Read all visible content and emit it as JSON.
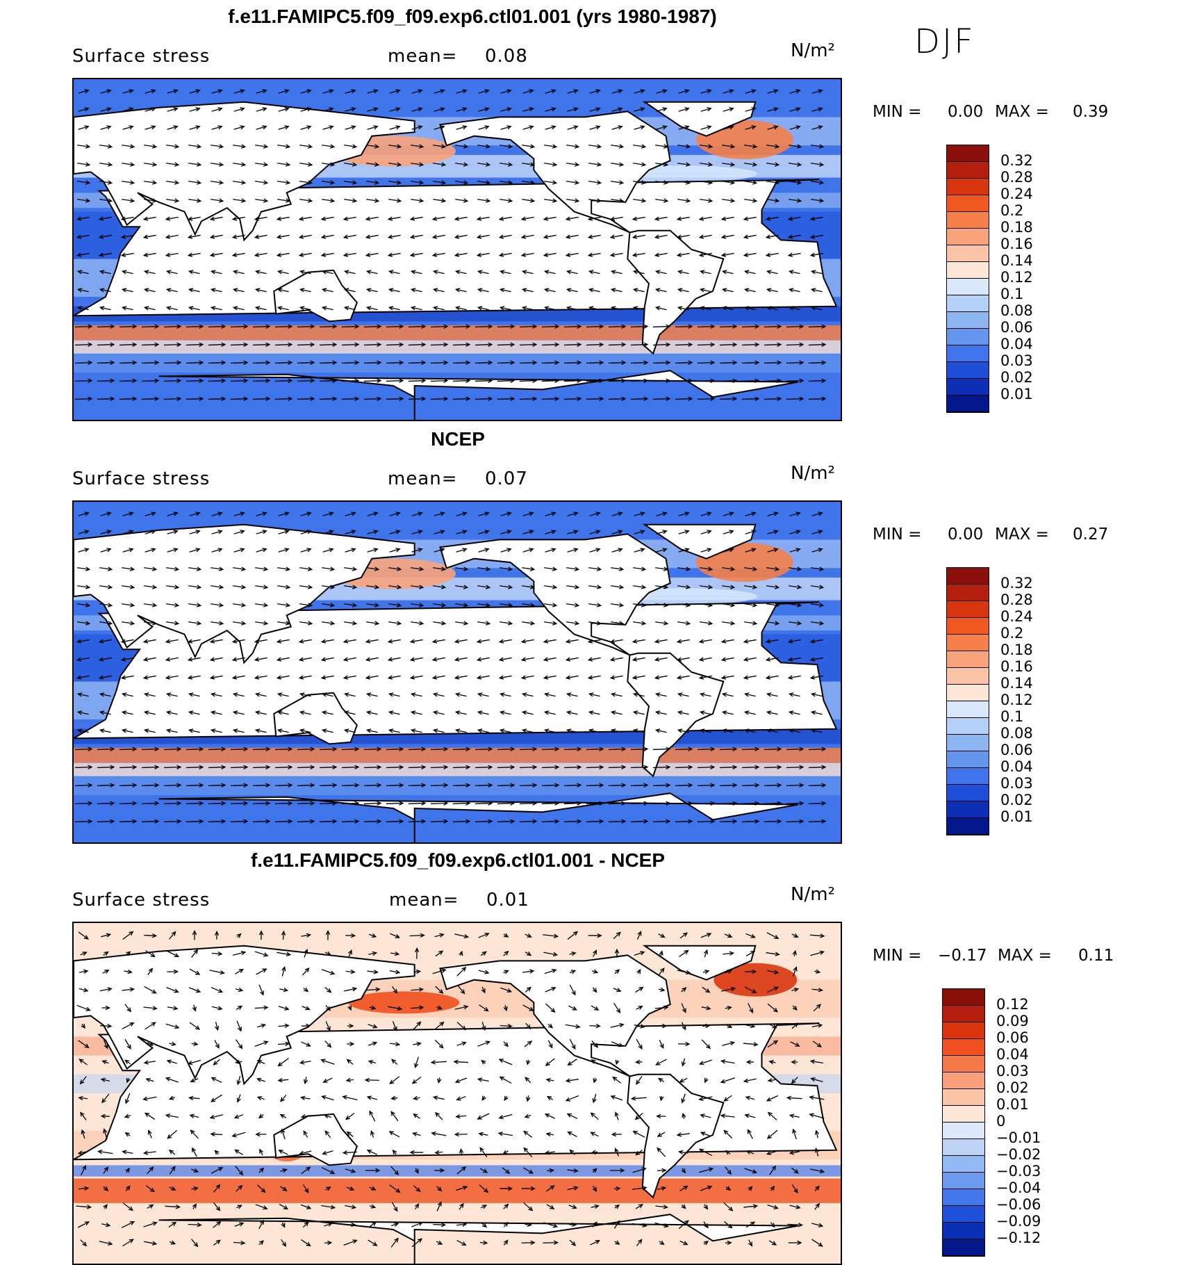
{
  "season": "DJF",
  "colors": {
    "ocean_base_blue": "#4a7fe6",
    "land": "#ffffff",
    "coast": "#000000"
  },
  "panels": [
    {
      "title": "f.e11.FAMIPC5.f09_f09.exp6.ctl01.001 (yrs 1980-1987)",
      "variable": "Surface stress",
      "mean_label": "mean=",
      "mean_value": "0.08",
      "units": "N/m²",
      "min_label": "MIN =",
      "min_value": "0.00",
      "max_label": "MAX =",
      "max_value": "0.39",
      "colorbar": {
        "labels": [
          "0.32",
          "0.28",
          "0.24",
          "0.2",
          "0.18",
          "0.16",
          "0.14",
          "0.12",
          "0.1",
          "0.08",
          "0.06",
          "0.04",
          "0.03",
          "0.02",
          "0.01"
        ],
        "colors": [
          "#8b0f0a",
          "#b31e0d",
          "#d9360f",
          "#f05a22",
          "#f5804a",
          "#f9a37c",
          "#fbc4a6",
          "#fde6d6",
          "#d9e8fb",
          "#b5d0f6",
          "#8db5f2",
          "#6496ed",
          "#3f74ea",
          "#1f4fd9",
          "#0c2fb5",
          "#03188a"
        ]
      }
    },
    {
      "title": "NCEP",
      "variable": "Surface stress",
      "mean_label": "mean=",
      "mean_value": "0.07",
      "units": "N/m²",
      "min_label": "MIN =",
      "min_value": "0.00",
      "max_label": "MAX =",
      "max_value": "0.27",
      "colorbar": {
        "labels": [
          "0.32",
          "0.28",
          "0.24",
          "0.2",
          "0.18",
          "0.16",
          "0.14",
          "0.12",
          "0.1",
          "0.08",
          "0.06",
          "0.04",
          "0.03",
          "0.02",
          "0.01"
        ],
        "colors": [
          "#8b0f0a",
          "#b31e0d",
          "#d9360f",
          "#f05a22",
          "#f5804a",
          "#f9a37c",
          "#fbc4a6",
          "#fde6d6",
          "#d9e8fb",
          "#b5d0f6",
          "#8db5f2",
          "#6496ed",
          "#3f74ea",
          "#1f4fd9",
          "#0c2fb5",
          "#03188a"
        ]
      }
    },
    {
      "title": "f.e11.FAMIPC5.f09_f09.exp6.ctl01.001 - NCEP",
      "variable": "Surface stress",
      "mean_label": "mean=",
      "mean_value": "0.01",
      "units": "N/m²",
      "min_label": "MIN =",
      "min_value": "−0.17",
      "max_label": "MAX =",
      "max_value": "0.11",
      "colorbar": {
        "labels": [
          "0.12",
          "0.09",
          "0.06",
          "0.04",
          "0.03",
          "0.02",
          "0.01",
          "0",
          "−0.01",
          "−0.02",
          "−0.03",
          "−0.04",
          "−0.06",
          "−0.09",
          "−0.12"
        ],
        "colors": [
          "#8b0f0a",
          "#b31e0d",
          "#d9360f",
          "#f0501e",
          "#f57a48",
          "#f9a07c",
          "#fbc4a6",
          "#fde6d6",
          "#dce9fb",
          "#bcd3f6",
          "#94b8f2",
          "#6b9aee",
          "#4276ea",
          "#1f50d9",
          "#0c30b5",
          "#03188a"
        ]
      }
    }
  ]
}
